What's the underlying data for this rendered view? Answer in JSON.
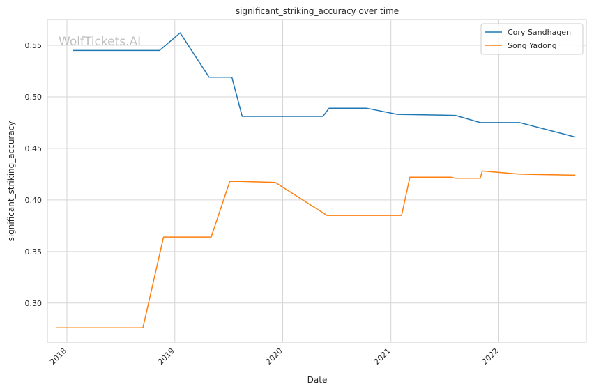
{
  "chart_data": {
    "type": "line",
    "title": "significant_striking_accuracy over time",
    "xlabel": "Date",
    "ylabel": "significant_striking_accuracy",
    "watermark": "WolfTickets.AI",
    "xlim": [
      "2017-10-27",
      "2022-10-24"
    ],
    "ylim": [
      0.262,
      0.575
    ],
    "x_ticks": [
      "2018-01-01",
      "2019-01-01",
      "2020-01-01",
      "2021-01-01",
      "2022-01-01"
    ],
    "x_tick_labels": [
      "2018",
      "2019",
      "2020",
      "2021",
      "2022"
    ],
    "y_ticks": [
      0.3,
      0.35,
      0.4,
      0.45,
      0.5,
      0.55
    ],
    "y_tick_labels": [
      "0.30",
      "0.35",
      "0.40",
      "0.45",
      "0.50",
      "0.55"
    ],
    "grid": true,
    "legend_position": "top-right",
    "series": [
      {
        "name": "Cory Sandhagen",
        "color": "#1f77b4",
        "points": [
          [
            "2018-01-20",
            0.545
          ],
          [
            "2018-11-10",
            0.545
          ],
          [
            "2019-01-19",
            0.562
          ],
          [
            "2019-04-27",
            0.519
          ],
          [
            "2019-07-13",
            0.519
          ],
          [
            "2019-08-17",
            0.481
          ],
          [
            "2020-05-16",
            0.481
          ],
          [
            "2020-06-06",
            0.489
          ],
          [
            "2020-10-10",
            0.489
          ],
          [
            "2021-01-23",
            0.483
          ],
          [
            "2021-08-07",
            0.482
          ],
          [
            "2021-10-30",
            0.475
          ],
          [
            "2022-03-12",
            0.475
          ],
          [
            "2022-09-17",
            0.461
          ]
        ]
      },
      {
        "name": "Song Yadong",
        "color": "#ff7f0e",
        "points": [
          [
            "2017-11-25",
            0.276
          ],
          [
            "2018-09-15",
            0.276
          ],
          [
            "2018-11-24",
            0.364
          ],
          [
            "2019-05-04",
            0.364
          ],
          [
            "2019-07-06",
            0.418
          ],
          [
            "2019-08-10",
            0.418
          ],
          [
            "2019-12-07",
            0.417
          ],
          [
            "2020-05-30",
            0.385
          ],
          [
            "2021-02-06",
            0.385
          ],
          [
            "2021-03-06",
            0.422
          ],
          [
            "2021-07-24",
            0.422
          ],
          [
            "2021-08-07",
            0.421
          ],
          [
            "2021-10-30",
            0.421
          ],
          [
            "2021-11-06",
            0.428
          ],
          [
            "2022-03-12",
            0.425
          ],
          [
            "2022-09-17",
            0.424
          ]
        ]
      }
    ]
  }
}
